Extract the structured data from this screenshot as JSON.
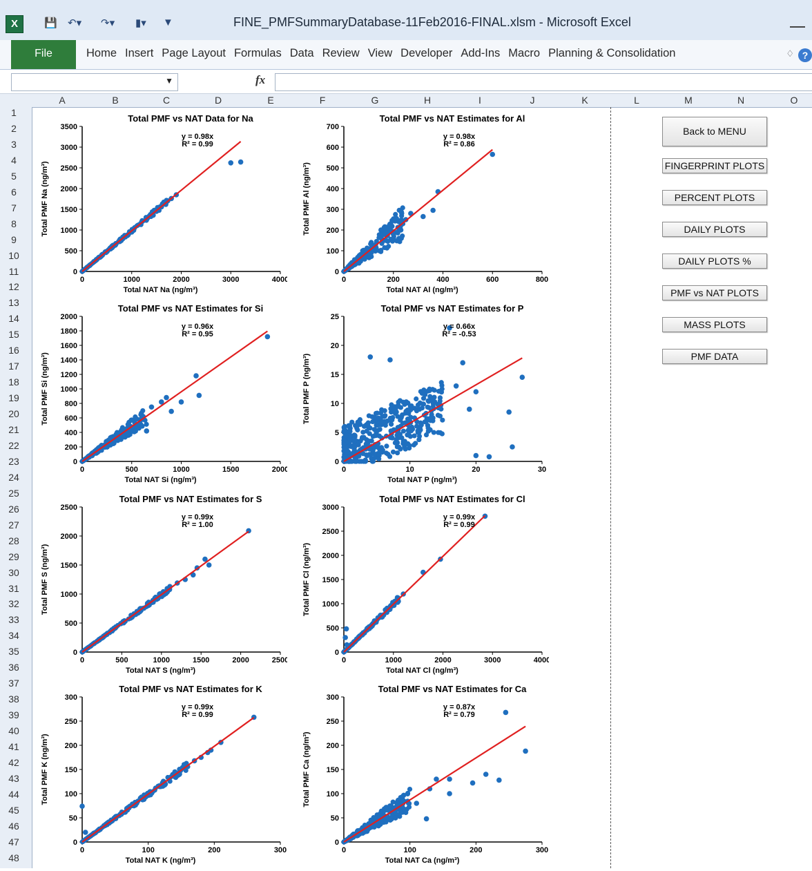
{
  "window": {
    "title": "FINE_PMFSummaryDatabase-11Feb2016-FINAL.xlsm  -  Microsoft Excel",
    "excel_icon": "X",
    "quick_access_icons": [
      "save-icon",
      "undo-icon",
      "redo-icon",
      "chart-icon",
      "customize-icon"
    ]
  },
  "ribbon": {
    "file_tab": "File",
    "tabs": [
      "Home",
      "Insert",
      "Page Layout",
      "Formulas",
      "Data",
      "Review",
      "View",
      "Developer",
      "Add-Ins",
      "Macro",
      "Planning & Consolidation"
    ],
    "collapse_icon": "♢",
    "help_label": "?"
  },
  "formula_bar": {
    "fx_label": "fx"
  },
  "sheet": {
    "columns": [
      "A",
      "B",
      "C",
      "D",
      "E",
      "F",
      "G",
      "H",
      "I",
      "J",
      "K",
      "L",
      "M",
      "N",
      "O"
    ],
    "rows": [
      "1",
      "2",
      "3",
      "4",
      "5",
      "6",
      "7",
      "8",
      "9",
      "10",
      "11",
      "12",
      "13",
      "14",
      "15",
      "16",
      "17",
      "18",
      "19",
      "20",
      "21",
      "22",
      "23",
      "24",
      "25",
      "26",
      "27",
      "28",
      "29",
      "30",
      "31",
      "32",
      "33",
      "34",
      "35",
      "36",
      "37",
      "38",
      "39",
      "40",
      "41",
      "42",
      "43",
      "44",
      "45",
      "46",
      "47",
      "48"
    ]
  },
  "buttons": [
    "Back to MENU",
    "FINGERPRINT PLOTS",
    "PERCENT PLOTS",
    "DAILY PLOTS",
    "DAILY PLOTS %",
    "PMF vs NAT PLOTS",
    "MASS PLOTS",
    "PMF DATA"
  ],
  "colors": {
    "point": "#1f6fbf",
    "line": "#e02020",
    "file_tab": "#2f7d3b"
  },
  "chart_data": [
    {
      "type": "scatter",
      "title": "Total PMF vs NAT Data  for Na",
      "xlabel": "Total NAT  Na (ng/m³)",
      "ylabel": "Total PMF Na (ng/m³)",
      "xlim": [
        0,
        4000
      ],
      "ylim": [
        0,
        3500
      ],
      "xticks": [
        0,
        1000,
        2000,
        3000,
        4000
      ],
      "yticks": [
        0,
        500,
        1000,
        1500,
        2000,
        2500,
        3000,
        3500
      ],
      "trend": {
        "slope": 0.98,
        "equation": "y = 0.98x",
        "r2": "R² = 0.99",
        "xmax": 3200
      },
      "points": [
        [
          3000,
          2620
        ],
        [
          3200,
          2640
        ],
        [
          1900,
          1850
        ],
        [
          1800,
          1760
        ],
        [
          1700,
          1680
        ],
        [
          1500,
          1450
        ],
        [
          1600,
          1560
        ],
        [
          1400,
          1380
        ],
        [
          1300,
          1250
        ]
      ],
      "cloud": {
        "xmax": 1800,
        "spread": 0.04,
        "n": 180
      }
    },
    {
      "type": "scatter",
      "title": "Total PMF vs NAT Estimates for Al",
      "xlabel": "Total NAT  Al (ng/m³)",
      "ylabel": "Total PMF Al (ng/m³)",
      "xlim": [
        0,
        800
      ],
      "ylim": [
        0,
        700
      ],
      "xticks": [
        0,
        200,
        400,
        600,
        800
      ],
      "yticks": [
        0,
        100,
        200,
        300,
        400,
        500,
        600,
        700
      ],
      "trend": {
        "slope": 0.98,
        "equation": "y = 0.98x",
        "r2": "R² = 0.86",
        "xmax": 600
      },
      "points": [
        [
          600,
          565
        ],
        [
          380,
          385
        ],
        [
          360,
          295
        ],
        [
          320,
          265
        ],
        [
          270,
          280
        ],
        [
          250,
          250
        ],
        [
          230,
          200
        ],
        [
          200,
          180
        ],
        [
          150,
          200
        ],
        [
          170,
          150
        ]
      ],
      "cloud": {
        "xmax": 240,
        "spread": 0.35,
        "n": 220
      }
    },
    {
      "type": "scatter",
      "title": "Total PMF vs NAT Estimates for Si",
      "xlabel": "Total NAT  Si (ng/m³)",
      "ylabel": "Total PMF Si (ng/m³)",
      "xlim": [
        0,
        2000
      ],
      "ylim": [
        0,
        2000
      ],
      "xticks": [
        0,
        500,
        1000,
        1500,
        2000
      ],
      "yticks": [
        0,
        200,
        400,
        600,
        800,
        1000,
        1200,
        1400,
        1600,
        1800,
        2000
      ],
      "trend": {
        "slope": 0.96,
        "equation": "y = 0.96x",
        "r2": "R² = 0.95",
        "xmax": 1870
      },
      "points": [
        [
          1870,
          1720
        ],
        [
          1150,
          1180
        ],
        [
          1180,
          910
        ],
        [
          1000,
          820
        ],
        [
          900,
          690
        ],
        [
          850,
          880
        ],
        [
          800,
          820
        ],
        [
          700,
          750
        ],
        [
          650,
          420
        ]
      ],
      "cloud": {
        "xmax": 650,
        "spread": 0.2,
        "n": 200
      }
    },
    {
      "type": "scatter",
      "title": "Total PMF vs NAT Estimates for P",
      "xlabel": "Total NAT  P (ng/m³)",
      "ylabel": "Total PMF P (ng/m³)",
      "xlim": [
        0,
        30
      ],
      "ylim": [
        0,
        25
      ],
      "xticks": [
        0,
        10,
        20,
        30
      ],
      "yticks": [
        0,
        5,
        10,
        15,
        20,
        25
      ],
      "trend": {
        "slope": 0.66,
        "equation": "y = 0.66x",
        "r2": "R² = -0.53",
        "xmax": 27
      },
      "points": [
        [
          16,
          23
        ],
        [
          27,
          14.5
        ],
        [
          25,
          8.5
        ],
        [
          25.5,
          2.5
        ],
        [
          22,
          0.8
        ],
        [
          20,
          1
        ],
        [
          18,
          17
        ],
        [
          7,
          17.5
        ],
        [
          4,
          18
        ],
        [
          20,
          12
        ],
        [
          17,
          13
        ],
        [
          19,
          9
        ]
      ],
      "cloud": {
        "xmax": 15,
        "spread": 1,
        "n": 420,
        "mode": "diffuse"
      }
    },
    {
      "type": "scatter",
      "title": "Total PMF vs NAT Estimates for S",
      "xlabel": "Total NAT  S (ng/m³)",
      "ylabel": "Total PMF S (ng/m³)",
      "xlim": [
        0,
        2500
      ],
      "ylim": [
        0,
        2500
      ],
      "xticks": [
        0,
        500,
        1000,
        1500,
        2000,
        2500
      ],
      "yticks": [
        0,
        500,
        1000,
        1500,
        2000,
        2500
      ],
      "trend": {
        "slope": 0.99,
        "equation": "y = 0.99x",
        "r2": "R² = 1.00",
        "xmax": 2100
      },
      "points": [
        [
          2100,
          2090
        ],
        [
          1600,
          1500
        ],
        [
          1550,
          1600
        ],
        [
          1450,
          1450
        ],
        [
          1400,
          1330
        ],
        [
          1300,
          1250
        ],
        [
          1200,
          1190
        ]
      ],
      "cloud": {
        "xmax": 1150,
        "spread": 0.04,
        "n": 180
      }
    },
    {
      "type": "scatter",
      "title": "Total PMF vs NAT Estimates for Cl",
      "xlabel": "Total NAT  Cl (ng/m³)",
      "ylabel": "Total PMF Cl (ng/m³)",
      "xlim": [
        0,
        4000
      ],
      "ylim": [
        0,
        3000
      ],
      "xticks": [
        0,
        1000,
        2000,
        3000,
        4000
      ],
      "yticks": [
        0,
        500,
        1000,
        1500,
        2000,
        2500,
        3000
      ],
      "trend": {
        "slope": 0.99,
        "equation": "y = 0.99x",
        "r2": "R² = 0.99",
        "xmax": 2850
      },
      "points": [
        [
          2850,
          2810
        ],
        [
          1950,
          1920
        ],
        [
          1600,
          1650
        ],
        [
          1200,
          1200
        ],
        [
          1100,
          1050
        ],
        [
          50,
          480
        ],
        [
          30,
          300
        ],
        [
          60,
          150
        ]
      ],
      "cloud": {
        "xmax": 1100,
        "spread": 0.06,
        "n": 150
      }
    },
    {
      "type": "scatter",
      "title": "Total PMF vs NAT Estimates for K",
      "xlabel": "Total NAT  K (ng/m³)",
      "ylabel": "Total PMF K (ng/m³)",
      "xlim": [
        0,
        300
      ],
      "ylim": [
        0,
        300
      ],
      "xticks": [
        0,
        100,
        200,
        300
      ],
      "yticks": [
        0,
        50,
        100,
        150,
        200,
        250,
        300
      ],
      "trend": {
        "slope": 0.99,
        "equation": "y = 0.99x",
        "r2": "R² = 0.99",
        "xmax": 260
      },
      "points": [
        [
          260,
          258
        ],
        [
          210,
          206
        ],
        [
          195,
          190
        ],
        [
          190,
          185
        ],
        [
          180,
          175
        ],
        [
          170,
          168
        ],
        [
          0,
          74
        ],
        [
          5,
          20
        ]
      ],
      "cloud": {
        "xmax": 160,
        "spread": 0.05,
        "n": 200
      }
    },
    {
      "type": "scatter",
      "title": "Total PMF vs NAT Estimates for Ca",
      "xlabel": "Total NAT  Ca (ng/m³)",
      "ylabel": "Total PMF Ca (ng/m³)",
      "xlim": [
        0,
        300
      ],
      "ylim": [
        0,
        300
      ],
      "xticks": [
        0,
        100,
        200,
        300
      ],
      "yticks": [
        0,
        50,
        100,
        150,
        200,
        250,
        300
      ],
      "trend": {
        "slope": 0.87,
        "equation": "y = 0.87x",
        "r2": "R² = 0.79",
        "xmax": 275
      },
      "points": [
        [
          245,
          268
        ],
        [
          275,
          188
        ],
        [
          235,
          128
        ],
        [
          215,
          140
        ],
        [
          195,
          122
        ],
        [
          160,
          130
        ],
        [
          160,
          100
        ],
        [
          140,
          130
        ],
        [
          130,
          110
        ],
        [
          125,
          48
        ],
        [
          110,
          80
        ]
      ],
      "cloud": {
        "xmax": 100,
        "spread": 0.3,
        "n": 250
      }
    }
  ]
}
